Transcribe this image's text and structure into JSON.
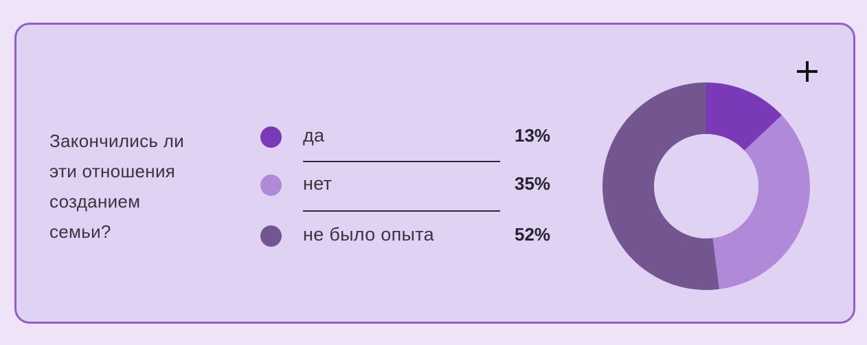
{
  "question": [
    "Закончились ли",
    "эти отношения",
    "созданием",
    "семьи?"
  ],
  "legend": [
    {
      "label": "да",
      "value": "13%",
      "color": "#7a3ab8"
    },
    {
      "label": "нет",
      "value": "35%",
      "color": "#b08ad8"
    },
    {
      "label": "не было опыта",
      "value": "52%",
      "color": "#735590"
    }
  ],
  "plus_icon": "plus-icon",
  "chart_data": {
    "type": "pie",
    "style": "donut",
    "categories": [
      "да",
      "нет",
      "не было опыта"
    ],
    "values": [
      13,
      35,
      52
    ],
    "colors": [
      "#7a3ab8",
      "#b08ad8",
      "#735590"
    ],
    "title": "Закончились ли эти отношения созданием семьи?"
  }
}
